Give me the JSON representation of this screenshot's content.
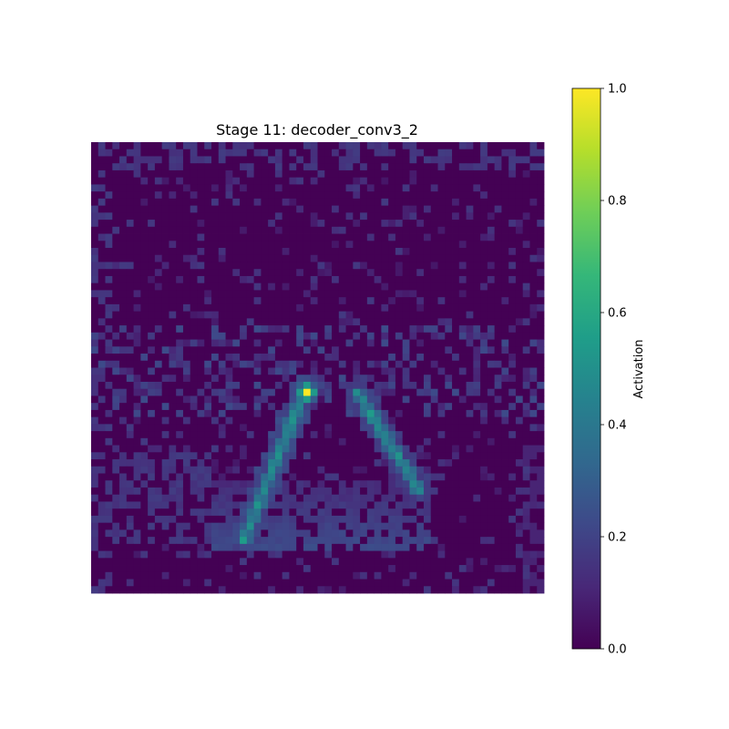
{
  "chart_data": {
    "type": "heatmap",
    "title": "Stage 11: decoder_conv3_2",
    "grid": false,
    "axes_visible": false,
    "colormap": "viridis",
    "colormap_stops": [
      "#440154",
      "#482878",
      "#3e4989",
      "#31688e",
      "#26828e",
      "#1f9e89",
      "#35b779",
      "#6ece58",
      "#b5de2b",
      "#fde725"
    ],
    "resolution": [
      64,
      64
    ],
    "value_range": [
      0.0,
      1.0
    ],
    "colorbar": {
      "label": "Activation",
      "ticks": [
        0.0,
        0.2,
        0.4,
        0.6,
        0.8,
        1.0
      ],
      "tick_labels": [
        "0.0",
        "0.2",
        "0.4",
        "0.6",
        "0.8",
        "1.0"
      ],
      "placement": "right"
    },
    "features": {
      "peak": {
        "col": 30,
        "row": 35,
        "value": 1.0
      },
      "left_edge": {
        "from": [
          30,
          34
        ],
        "to": [
          21,
          56
        ],
        "value": 0.5
      },
      "right_edge": {
        "from": [
          37,
          35
        ],
        "to": [
          46,
          49
        ],
        "value": 0.5
      },
      "base_glow": {
        "cols": [
          17,
          47
        ],
        "rows": [
          48,
          57
        ],
        "value": 0.18
      },
      "background": 0.0
    }
  }
}
